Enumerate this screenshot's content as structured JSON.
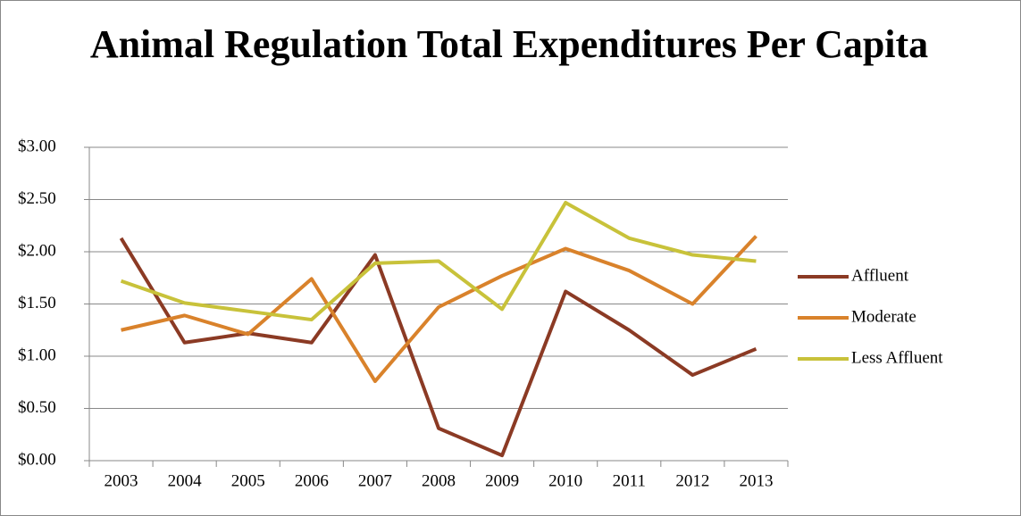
{
  "chart_data": {
    "type": "line",
    "title": "Animal Regulation Total Expenditures Per Capita",
    "categories": [
      "2003",
      "2004",
      "2005",
      "2006",
      "2007",
      "2008",
      "2009",
      "2010",
      "2011",
      "2012",
      "2013"
    ],
    "series": [
      {
        "name": "Affluent",
        "color": "#8b3a24",
        "values": [
          2.13,
          1.13,
          1.22,
          1.13,
          1.97,
          0.31,
          0.05,
          1.62,
          1.25,
          0.82,
          1.07
        ]
      },
      {
        "name": "Moderate",
        "color": "#d9822b",
        "values": [
          1.25,
          1.39,
          1.21,
          1.74,
          0.76,
          1.47,
          1.77,
          2.03,
          1.82,
          1.5,
          2.15
        ]
      },
      {
        "name": "Less Affluent",
        "color": "#c8c23a",
        "values": [
          1.72,
          1.51,
          1.43,
          1.35,
          1.89,
          1.91,
          1.45,
          2.47,
          2.13,
          1.97,
          1.91
        ]
      }
    ],
    "ylim": [
      0,
      3
    ],
    "yticks": [
      {
        "value": 0,
        "label": "$0.00"
      },
      {
        "value": 0.5,
        "label": "$0.50"
      },
      {
        "value": 1,
        "label": "$1.00"
      },
      {
        "value": 1.5,
        "label": "$1.50"
      },
      {
        "value": 2,
        "label": "$2.00"
      },
      {
        "value": 2.5,
        "label": "$2.50"
      },
      {
        "value": 3,
        "label": "$3.00"
      }
    ],
    "grid": true,
    "legend": "right"
  }
}
